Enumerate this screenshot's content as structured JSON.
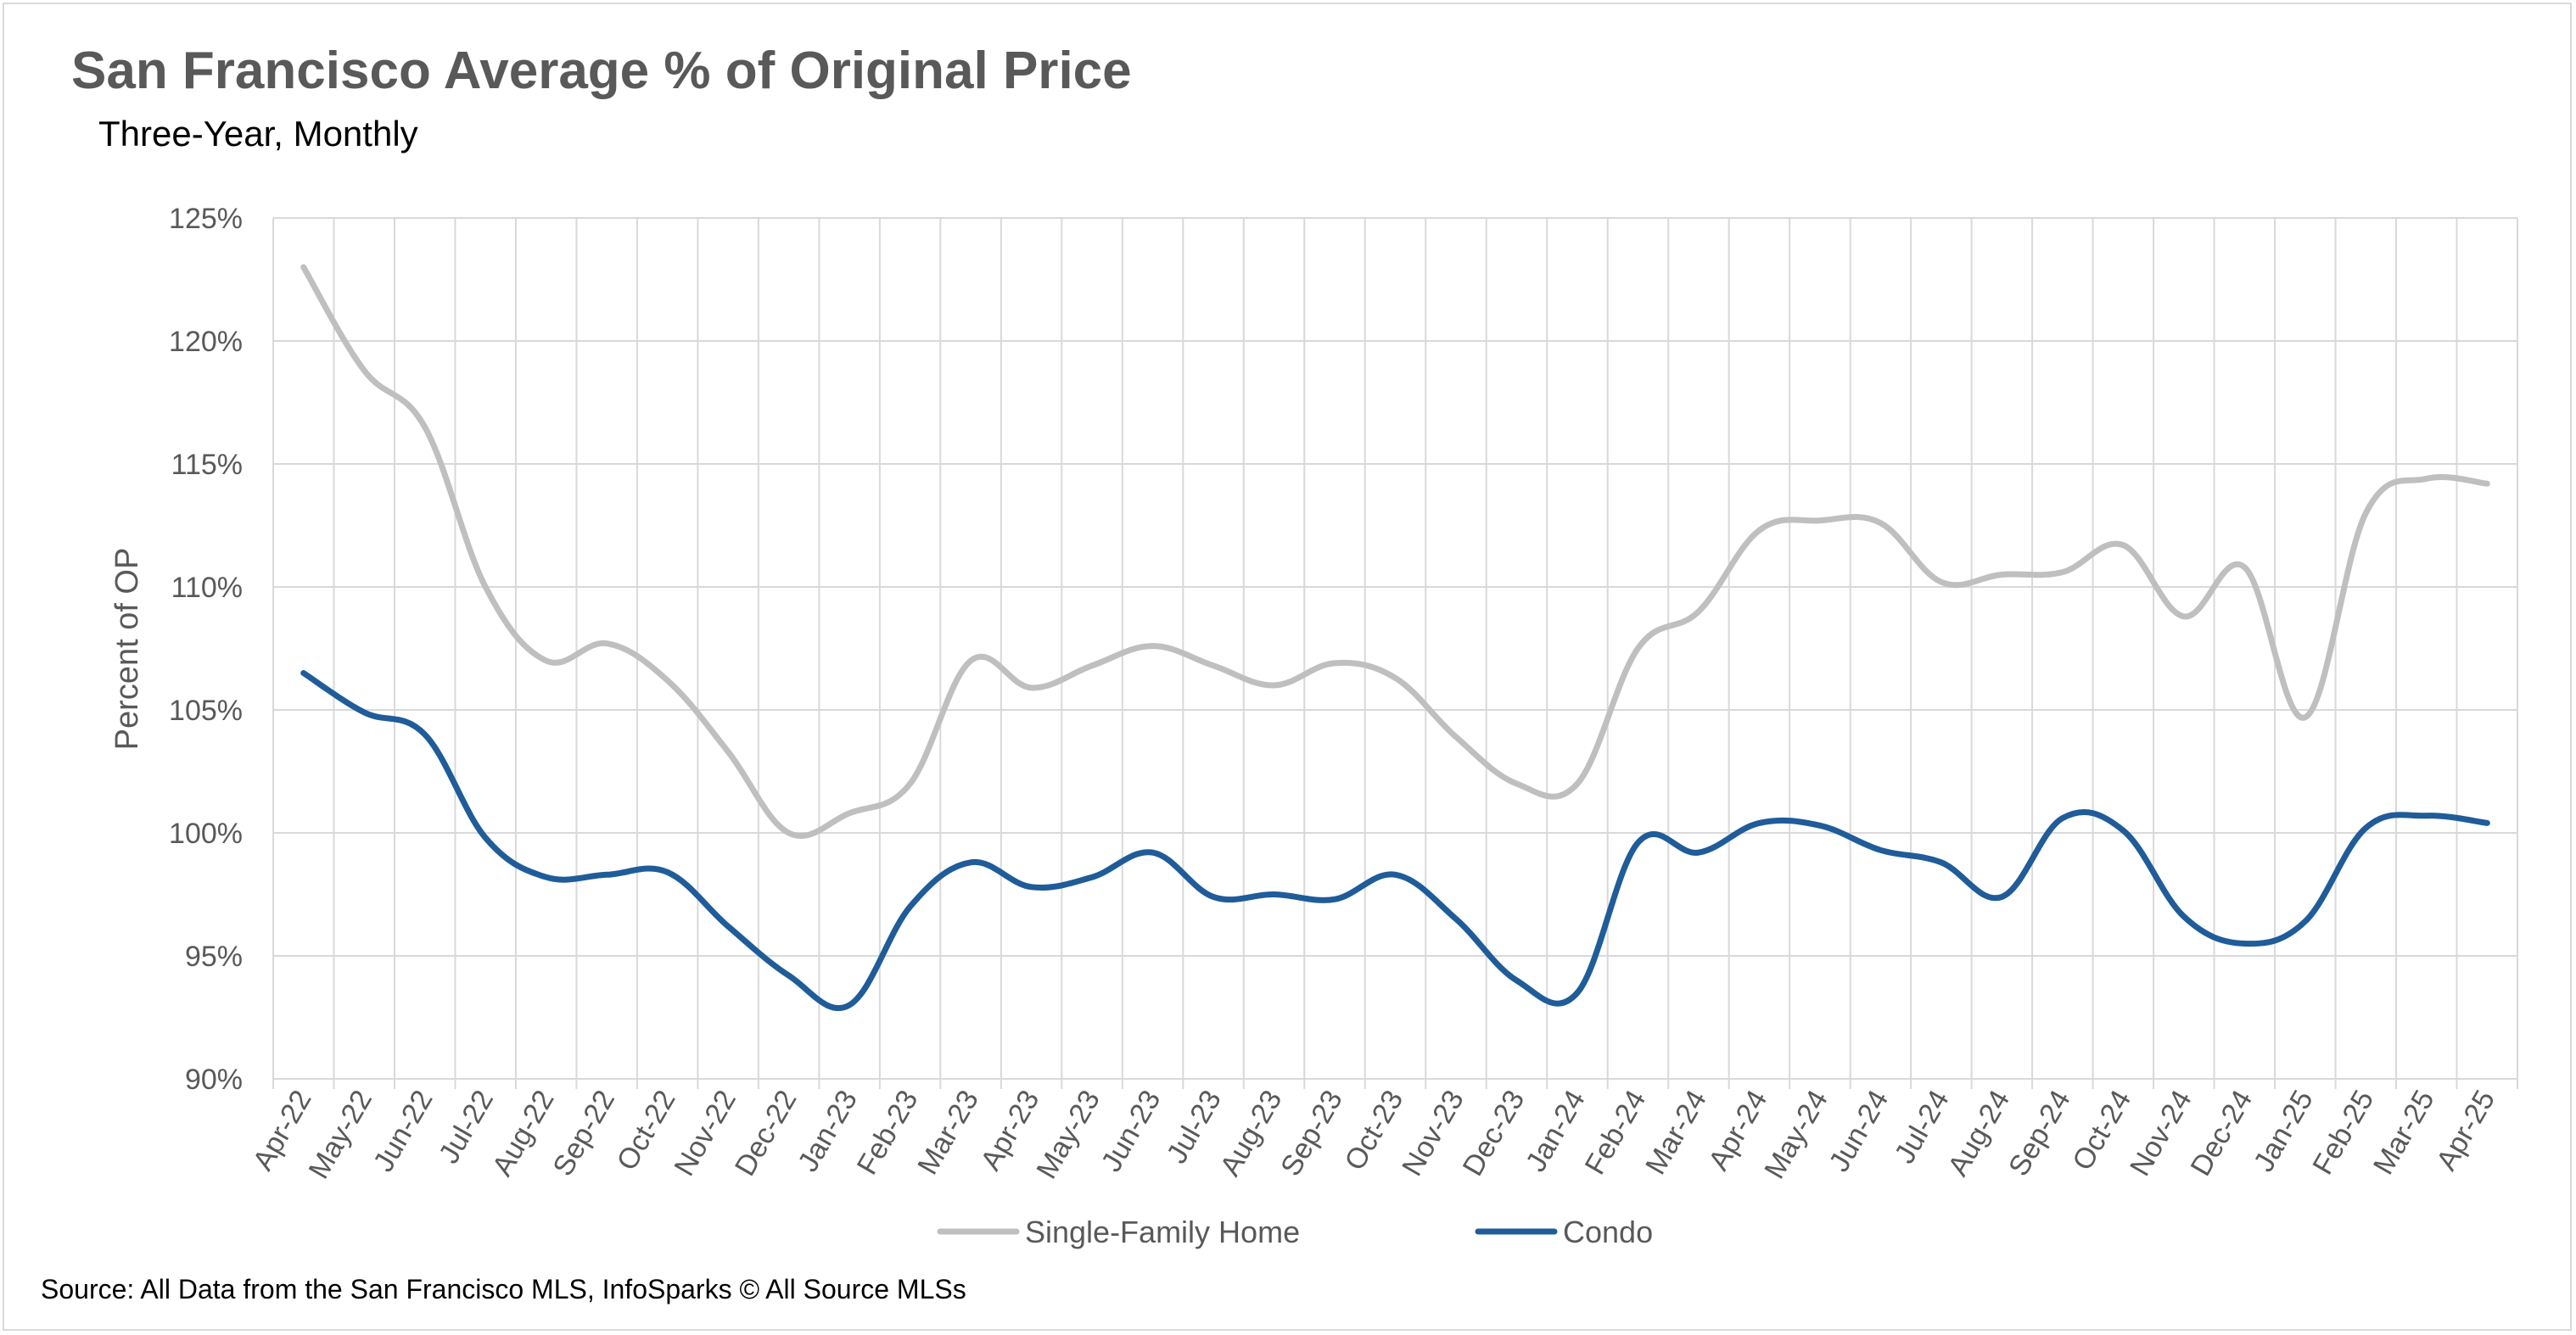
{
  "chart_data": {
    "type": "line",
    "title": "San Francisco Average % of Original Price",
    "subtitle": "Three-Year, Monthly",
    "ylabel": "Percent of OP",
    "xlabel": "",
    "ylim": [
      90,
      125
    ],
    "yticks": [
      "90%",
      "95%",
      "100%",
      "105%",
      "110%",
      "115%",
      "120%",
      "125%"
    ],
    "grid": true,
    "legend_position": "bottom",
    "categories": [
      "Apr-22",
      "May-22",
      "Jun-22",
      "Jul-22",
      "Aug-22",
      "Sep-22",
      "Oct-22",
      "Nov-22",
      "Dec-22",
      "Jan-23",
      "Feb-23",
      "Mar-23",
      "Apr-23",
      "May-23",
      "Jun-23",
      "Jul-23",
      "Aug-23",
      "Sep-23",
      "Oct-23",
      "Nov-23",
      "Dec-23",
      "Jan-24",
      "Feb-24",
      "Mar-24",
      "Apr-24",
      "May-24",
      "Jun-24",
      "Jul-24",
      "Aug-24",
      "Sep-24",
      "Oct-24",
      "Nov-24",
      "Dec-24",
      "Jan-25",
      "Feb-25",
      "Mar-25",
      "Apr-25"
    ],
    "series": [
      {
        "name": "Single-Family Home",
        "color": "#bfbfbf",
        "values": [
          123.0,
          118.8,
          116.5,
          110.0,
          107.0,
          107.7,
          106.2,
          103.3,
          100.0,
          100.8,
          102.0,
          107.0,
          105.9,
          106.8,
          107.6,
          106.8,
          106.0,
          106.9,
          106.3,
          103.9,
          102.0,
          102.0,
          107.5,
          109.0,
          112.3,
          112.7,
          112.6,
          110.2,
          110.5,
          110.6,
          111.7,
          108.8,
          110.8,
          104.7,
          113.0,
          114.4,
          114.2
        ]
      },
      {
        "name": "Condo",
        "color": "#1f5c99",
        "values": [
          106.5,
          104.9,
          104.0,
          99.8,
          98.2,
          98.3,
          98.4,
          96.2,
          94.2,
          93.0,
          97.0,
          98.8,
          97.8,
          98.2,
          99.2,
          97.4,
          97.5,
          97.3,
          98.3,
          96.5,
          94.0,
          93.5,
          99.6,
          99.2,
          100.4,
          100.3,
          99.3,
          98.8,
          97.4,
          100.6,
          100.1,
          96.6,
          95.5,
          96.4,
          100.2,
          100.7,
          100.4
        ]
      }
    ]
  },
  "source": "Source: All Data from the San Francisco MLS, InfoSparks © All Source MLSs"
}
